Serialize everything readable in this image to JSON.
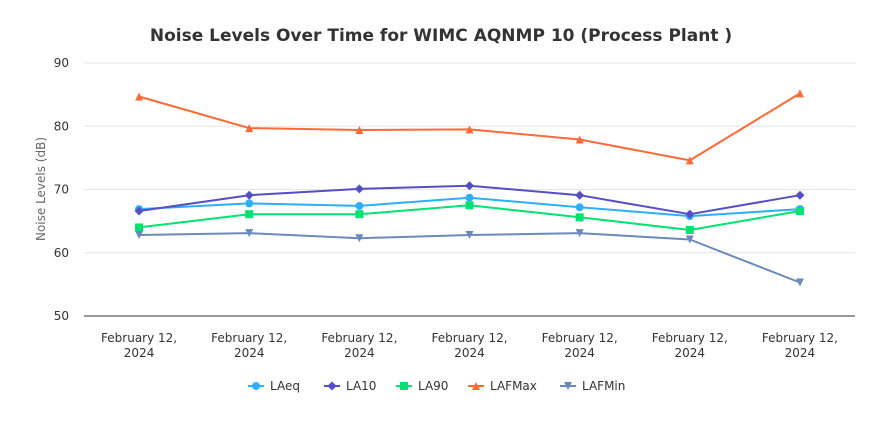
{
  "chart_data": {
    "type": "line",
    "title": "Noise Levels Over Time for WIMC AQNMP 10 (Process Plant )",
    "xlabel": "",
    "ylabel": "Noise Levels (dB)",
    "ylim": [
      50,
      90
    ],
    "yticks": [
      "50",
      "60",
      "70",
      "80",
      "90"
    ],
    "categories": [
      [
        "February 12,",
        "2024"
      ],
      [
        "February 12,",
        "2024"
      ],
      [
        "February 12,",
        "2024"
      ],
      [
        "February 12,",
        "2024"
      ],
      [
        "February 12,",
        "2024"
      ],
      [
        "February 12,",
        "2024"
      ],
      [
        "February 12,",
        "2024"
      ]
    ],
    "grid": "horizontal",
    "legend": "bottom",
    "series": [
      {
        "name": "LAeq",
        "color": "#2caffe",
        "marker": "circle",
        "values": [
          66.9,
          67.8,
          67.4,
          68.7,
          67.2,
          65.8,
          66.9
        ]
      },
      {
        "name": "LA10",
        "color": "#544fc5",
        "marker": "diamond",
        "values": [
          66.6,
          69.1,
          70.1,
          70.6,
          69.1,
          66.1,
          69.1
        ]
      },
      {
        "name": "LA90",
        "color": "#00e272",
        "marker": "square",
        "values": [
          64.0,
          66.1,
          66.1,
          67.5,
          65.6,
          63.6,
          66.6
        ]
      },
      {
        "name": "LAFMax",
        "color": "#fe6a35",
        "marker": "triangle",
        "values": [
          84.7,
          79.7,
          79.4,
          79.5,
          77.9,
          74.6,
          85.2
        ]
      },
      {
        "name": "LAFMin",
        "color": "#6b8abc",
        "marker": "triangle-down",
        "values": [
          62.8,
          63.1,
          62.3,
          62.8,
          63.1,
          62.1,
          55.3
        ]
      }
    ]
  }
}
